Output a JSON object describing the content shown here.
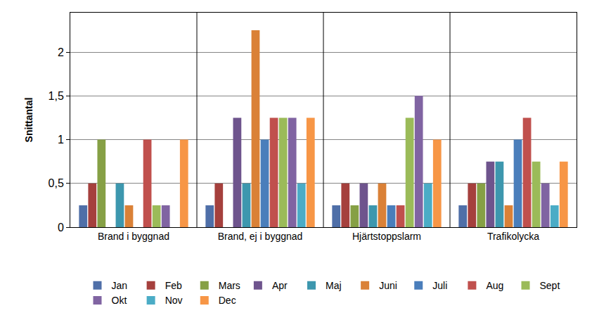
{
  "chart_data": {
    "type": "bar",
    "ylabel": "Snittantal",
    "categories": [
      "Brand i byggnad",
      "Brand, ej i byggnad",
      "Hjärtstoppslarm",
      "Trafikolycka"
    ],
    "series": [
      {
        "name": "Jan",
        "color": "#4f6fa8",
        "values": [
          0.25,
          0.25,
          0.25,
          0.25
        ]
      },
      {
        "name": "Feb",
        "color": "#a5403d",
        "values": [
          0.5,
          0.5,
          0.5,
          0.5
        ]
      },
      {
        "name": "Mars",
        "color": "#86a045",
        "values": [
          1,
          0,
          0.25,
          0.5
        ]
      },
      {
        "name": "Apr",
        "color": "#6e548d",
        "values": [
          0,
          1.25,
          0.5,
          0.75
        ]
      },
      {
        "name": "Maj",
        "color": "#3d97ae",
        "values": [
          0.5,
          0.5,
          0.25,
          0.75
        ]
      },
      {
        "name": "Juni",
        "color": "#da8137",
        "values": [
          0.25,
          2.25,
          0.5,
          0.25
        ]
      },
      {
        "name": "Juli",
        "color": "#4a7ebb",
        "values": [
          0,
          1,
          0.25,
          1
        ]
      },
      {
        "name": "Aug",
        "color": "#c0504d",
        "values": [
          1,
          1.25,
          0.25,
          1.25
        ]
      },
      {
        "name": "Sept",
        "color": "#9bbb59",
        "values": [
          0.25,
          1.25,
          1.25,
          0.75
        ]
      },
      {
        "name": "Okt",
        "color": "#8064a2",
        "values": [
          0.25,
          1.25,
          1.5,
          0.5
        ]
      },
      {
        "name": "Nov",
        "color": "#4bacc6",
        "values": [
          0,
          0.5,
          0.5,
          0.25
        ]
      },
      {
        "name": "Dec",
        "color": "#f79646",
        "values": [
          1,
          1.25,
          1,
          0.75
        ]
      }
    ],
    "ylim": [
      0,
      2.45
    ],
    "yticks": [
      0,
      {
        "value": 0.5,
        "label": "0,5"
      },
      1,
      {
        "value": 1.5,
        "label": "1,5"
      },
      2
    ],
    "grid": true,
    "legend": "bottom"
  }
}
